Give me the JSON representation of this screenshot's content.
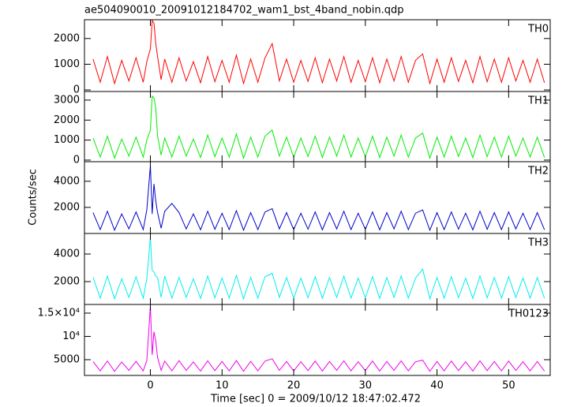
{
  "chart_data": {
    "type": "line",
    "title": "ae504090010_20091012184702_wam1_bst_4band_nobin.qdp",
    "xlabel": "Time [sec] 0 = 2009/10/12 18:47:02.472",
    "ylabel": "Counts/sec",
    "x": [
      -8,
      -7,
      -6,
      -5,
      -4,
      -3,
      -2,
      -1,
      -0.5,
      0,
      0.25,
      0.5,
      0.75,
      1,
      1.5,
      2,
      3,
      4,
      5,
      6,
      7,
      8,
      9,
      10,
      11,
      12,
      13,
      14,
      15,
      16,
      17,
      18,
      19,
      20,
      21,
      22,
      23,
      24,
      25,
      26,
      27,
      28,
      29,
      30,
      31,
      32,
      33,
      34,
      35,
      36,
      37,
      38,
      39,
      40,
      41,
      42,
      43,
      44,
      45,
      46,
      47,
      48,
      49,
      50,
      51,
      52,
      53,
      54,
      55
    ],
    "xlim": [
      -9.2,
      55.8
    ],
    "xticks": [
      0,
      10,
      20,
      30,
      40,
      50
    ],
    "panels": [
      {
        "series": [
          {
            "name": "TH0",
            "color": "#ff0000",
            "values": [
              1200,
              300,
              1300,
              250,
              1150,
              350,
              1250,
              300,
              1100,
              1600,
              2700,
              2600,
              1800,
              1300,
              400,
              1200,
              300,
              1250,
              350,
              1100,
              280,
              1300,
              320,
              1150,
              300,
              1350,
              250,
              1200,
              300,
              1250,
              1800,
              350,
              1200,
              300,
              1150,
              330,
              1250,
              280,
              1200,
              350,
              1300,
              300,
              1150,
              320,
              1250,
              280,
              1200,
              350,
              1300,
              300,
              1150,
              1400,
              250,
              1200,
              300,
              1250,
              330,
              1150,
              280,
              1300,
              320,
              1200,
              300,
              1250,
              350,
              1150,
              300,
              1200,
              280
            ]
          }
        ],
        "ylim": [
          -60,
          2730
        ],
        "yticks": [
          0,
          1000,
          2000
        ]
      },
      {
        "series": [
          {
            "name": "TH1",
            "color": "#00ee00",
            "values": [
              1100,
              150,
              1200,
              100,
              1050,
              200,
              1150,
              150,
              1000,
              1500,
              3200,
              3100,
              2600,
              1200,
              250,
              1100,
              150,
              1200,
              200,
              1050,
              130,
              1250,
              170,
              1100,
              150,
              1300,
              100,
              1150,
              150,
              1200,
              1500,
              200,
              1150,
              150,
              1100,
              180,
              1200,
              130,
              1150,
              200,
              1250,
              150,
              1100,
              170,
              1200,
              130,
              1150,
              200,
              1250,
              150,
              1100,
              1350,
              100,
              1150,
              150,
              1200,
              180,
              1100,
              130,
              1250,
              170,
              1150,
              150,
              1200,
              200,
              1100,
              150,
              1150,
              130
            ]
          }
        ],
        "ylim": [
          -80,
          3430
        ],
        "yticks": [
          0,
          1000,
          2000,
          3000
        ]
      },
      {
        "series": [
          {
            "name": "TH2",
            "color": "#0000cc",
            "values": [
              1600,
              300,
              1700,
              250,
              1500,
              350,
              1650,
              300,
              1800,
              5200,
              1500,
              3800,
              2500,
              1600,
              400,
              1700,
              2300,
              1600,
              350,
              1500,
              280,
              1700,
              320,
              1550,
              300,
              1750,
              250,
              1600,
              300,
              1650,
              1900,
              350,
              1600,
              300,
              1550,
              330,
              1650,
              280,
              1600,
              350,
              1700,
              300,
              1550,
              320,
              1650,
              280,
              1600,
              350,
              1700,
              300,
              1550,
              1800,
              250,
              1600,
              300,
              1650,
              330,
              1550,
              280,
              1700,
              320,
              1600,
              300,
              1650,
              350,
              1550,
              300,
              1600,
              280
            ]
          }
        ],
        "ylim": [
          0,
          5500
        ],
        "yticks": [
          2000,
          4000
        ]
      },
      {
        "series": [
          {
            "name": "TH3",
            "color": "#00eeee",
            "values": [
              2300,
              800,
              2400,
              750,
              2200,
              850,
              2350,
              800,
              2200,
              5200,
              2800,
              2700,
              2400,
              2300,
              850,
              2400,
              800,
              2300,
              850,
              2200,
              780,
              2400,
              820,
              2250,
              800,
              2450,
              750,
              2300,
              800,
              2350,
              2600,
              850,
              2300,
              800,
              2250,
              830,
              2350,
              780,
              2300,
              850,
              2400,
              800,
              2250,
              820,
              2350,
              780,
              2300,
              850,
              2400,
              800,
              2250,
              2900,
              750,
              2300,
              800,
              2350,
              830,
              2250,
              780,
              2400,
              820,
              2300,
              800,
              2350,
              850,
              2250,
              800,
              2300,
              780
            ]
          }
        ],
        "ylim": [
          340,
          5490
        ],
        "yticks": [
          2000,
          4000
        ]
      },
      {
        "series": [
          {
            "name": "TH0123",
            "color": "#ee00ee",
            "values": [
              4600,
              2600,
              4700,
              2500,
              4500,
              2700,
              4650,
              2600,
              4800,
              16500,
              6000,
              11000,
              9000,
              5500,
              2700,
              4700,
              2600,
              4800,
              2700,
              4500,
              2550,
              4750,
              2650,
              4600,
              2600,
              4800,
              2500,
              4650,
              2600,
              4700,
              5200,
              2700,
              4600,
              2600,
              4550,
              2650,
              4700,
              2550,
              4600,
              2700,
              4750,
              2600,
              4550,
              2650,
              4700,
              2550,
              4600,
              2700,
              4750,
              2600,
              4550,
              4900,
              2500,
              4600,
              2600,
              4700,
              2650,
              4550,
              2550,
              4750,
              2650,
              4600,
              2600,
              4700,
              2700,
              4550,
              2600,
              4600,
              2550
            ]
          }
        ],
        "ylim": [
          1610,
          16860
        ],
        "yticks": [
          5000,
          {
            "value": 10000,
            "label": "10⁴"
          },
          {
            "value": 15000,
            "label": "1.5×10⁴"
          }
        ]
      }
    ]
  }
}
